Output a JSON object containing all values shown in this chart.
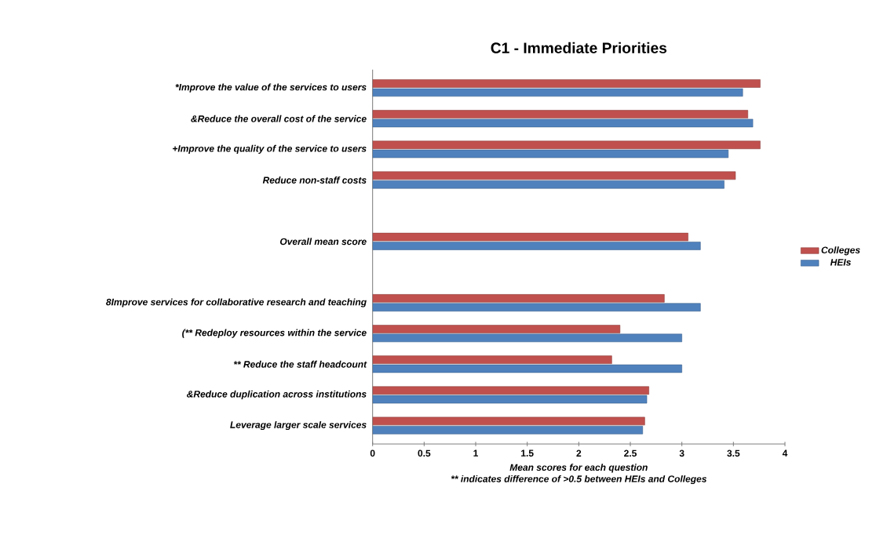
{
  "chart_data": {
    "type": "bar",
    "orientation": "horizontal",
    "title": "C1 - Immediate Priorities",
    "xlabel": "Mean scores for each question",
    "annotations": [
      "** indicates difference of >0.5 between HEIs and Colleges"
    ],
    "categories": [
      "*Improve the value of the services to users",
      "&Reduce the overall cost of the service",
      "+Improve the quality of the service to users",
      "Reduce non-staff costs",
      null,
      "Overall mean score",
      null,
      "8Improve services for collaborative research and teaching",
      "(** Redeploy resources within the service",
      "** Reduce the staff headcount",
      "&Reduce duplication across institutions",
      "Leverage larger scale services"
    ],
    "series": [
      {
        "name": "Colleges",
        "color": "#c0504d",
        "values": [
          3.76,
          3.64,
          3.76,
          3.52,
          null,
          3.06,
          null,
          2.83,
          2.4,
          2.32,
          2.68,
          2.64
        ]
      },
      {
        "name": "HEIs",
        "color": "#4f81bd",
        "values": [
          3.59,
          3.69,
          3.45,
          3.41,
          null,
          3.18,
          null,
          3.18,
          3.0,
          3.0,
          2.66,
          2.62
        ]
      }
    ],
    "xlim": [
      0,
      4
    ],
    "xticks": [
      0,
      0.5,
      1,
      1.5,
      2,
      2.5,
      3,
      3.5,
      4
    ],
    "legend": "right",
    "grid": false
  }
}
